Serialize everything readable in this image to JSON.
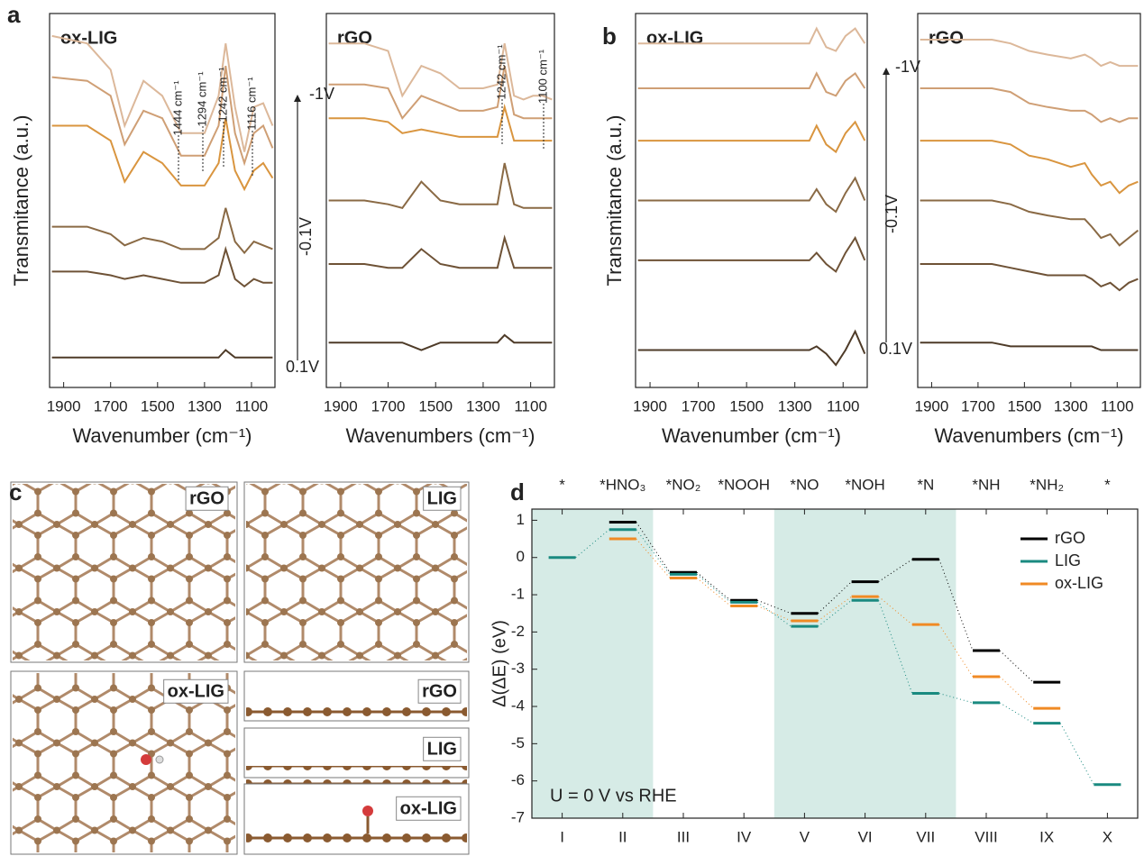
{
  "panel_letters": [
    "a",
    "b",
    "c",
    "d"
  ],
  "potential_labels": [
    "-1V",
    "-0.1V",
    "0.1V"
  ],
  "structure_labels": [
    "rGO",
    "LIG",
    "ox-LIG",
    "rGO",
    "LIG",
    "ox-LIG"
  ],
  "chart_data": [
    {
      "type": "line",
      "title": "ox-LIG",
      "title_color": "#f08a24",
      "y_label": "Transmitance (a.u.)",
      "x_label": "Wavenumber (cm⁻¹)",
      "xlim": [
        1960,
        1000
      ],
      "xticks": [
        1900,
        1700,
        1500,
        1300,
        1100
      ],
      "ylim": [
        0,
        100
      ],
      "annotations": [
        "1444 cm⁻¹",
        "1294 cm⁻¹",
        "1242 cm⁻¹",
        "1116 cm⁻¹"
      ],
      "x": [
        1950,
        1800,
        1700,
        1640,
        1560,
        1480,
        1400,
        1300,
        1240,
        1210,
        1170,
        1130,
        1090,
        1050,
        1010
      ],
      "series": [
        {
          "color": "#dcb89a",
          "values": [
            94,
            92,
            85,
            70,
            82,
            78,
            68,
            68,
            78,
            92,
            75,
            63,
            75,
            76,
            70
          ]
        },
        {
          "color": "#cf9f75",
          "values": [
            83,
            82,
            78,
            65,
            74,
            72,
            62,
            62,
            70,
            86,
            68,
            60,
            68,
            70,
            64
          ]
        },
        {
          "color": "#d9953f",
          "values": [
            70,
            70,
            66,
            55,
            63,
            60,
            54,
            54,
            60,
            72,
            58,
            53,
            58,
            60,
            56
          ]
        },
        {
          "color": "#8a6a45",
          "values": [
            43,
            43,
            41,
            38,
            40,
            39,
            37,
            37,
            40,
            48,
            39,
            36,
            39,
            38,
            37
          ]
        },
        {
          "color": "#6e5236",
          "values": [
            31,
            31,
            30,
            29,
            30,
            29,
            28,
            28,
            30,
            37,
            29,
            27,
            29,
            28,
            28
          ]
        },
        {
          "color": "#4e3b28",
          "values": [
            8,
            8,
            8,
            8,
            8,
            8,
            8,
            8,
            8,
            10,
            8,
            8,
            8,
            8,
            8
          ]
        }
      ]
    },
    {
      "type": "line",
      "title": "rGO",
      "title_color": "#8c8c8c",
      "x_label": "Wavenumbers (cm⁻¹)",
      "xlim": [
        1960,
        1000
      ],
      "xticks": [
        1900,
        1700,
        1500,
        1300,
        1100
      ],
      "ylim": [
        0,
        100
      ],
      "annotations": [
        "1242 cm⁻¹",
        "1100 cm⁻¹"
      ],
      "x": [
        1950,
        1800,
        1700,
        1640,
        1560,
        1480,
        1400,
        1300,
        1240,
        1210,
        1170,
        1130,
        1090,
        1050,
        1010
      ],
      "series": [
        {
          "color": "#dcb89a",
          "values": [
            92,
            92,
            90,
            78,
            86,
            84,
            80,
            80,
            81,
            92,
            78,
            77,
            78,
            78,
            77
          ]
        },
        {
          "color": "#cf9f75",
          "values": [
            81,
            81,
            80,
            72,
            78,
            76,
            74,
            74,
            75,
            86,
            73,
            72,
            72,
            72,
            72
          ]
        },
        {
          "color": "#d9953f",
          "values": [
            72,
            72,
            71,
            68,
            69,
            68,
            67,
            67,
            67,
            75,
            66,
            66,
            66,
            66,
            66
          ]
        },
        {
          "color": "#8a6a45",
          "values": [
            50,
            50,
            49,
            48,
            55,
            50,
            49,
            49,
            49,
            60,
            49,
            48,
            48,
            48,
            48
          ]
        },
        {
          "color": "#6e5236",
          "values": [
            33,
            33,
            32,
            32,
            37,
            33,
            32,
            32,
            32,
            40,
            32,
            32,
            32,
            32,
            32
          ]
        },
        {
          "color": "#4e3b28",
          "values": [
            12,
            12,
            12,
            12,
            10,
            12,
            12,
            12,
            12,
            14,
            12,
            12,
            12,
            12,
            12
          ]
        }
      ]
    },
    {
      "type": "line",
      "title": "ox-LIG",
      "title_color": "#f08a24",
      "y_label": "Transmitance (a.u.)",
      "x_label": "Wavenumber (cm⁻¹)",
      "xlim": [
        1960,
        1000
      ],
      "xticks": [
        1900,
        1700,
        1500,
        1300,
        1100
      ],
      "ylim": [
        0,
        100
      ],
      "x": [
        1950,
        1800,
        1700,
        1640,
        1560,
        1480,
        1400,
        1300,
        1240,
        1210,
        1170,
        1130,
        1090,
        1050,
        1010
      ],
      "series": [
        {
          "color": "#dcb89a",
          "values": [
            92,
            92,
            92,
            92,
            92,
            92,
            92,
            92,
            92,
            96,
            91,
            90,
            94,
            96,
            92
          ]
        },
        {
          "color": "#cf9f75",
          "values": [
            80,
            80,
            80,
            80,
            80,
            80,
            80,
            80,
            80,
            84,
            79,
            78,
            82,
            84,
            80
          ]
        },
        {
          "color": "#d9953f",
          "values": [
            66,
            66,
            66,
            66,
            66,
            66,
            66,
            66,
            66,
            70,
            65,
            63,
            68,
            71,
            66
          ]
        },
        {
          "color": "#8a6a45",
          "values": [
            50,
            50,
            50,
            50,
            50,
            50,
            50,
            50,
            50,
            53,
            49,
            47,
            52,
            56,
            50
          ]
        },
        {
          "color": "#6e5236",
          "values": [
            34,
            34,
            34,
            34,
            34,
            34,
            34,
            34,
            34,
            36,
            33,
            31,
            36,
            40,
            34
          ]
        },
        {
          "color": "#4e3b28",
          "values": [
            10,
            10,
            10,
            10,
            10,
            10,
            10,
            10,
            10,
            11,
            9,
            6,
            10,
            15,
            9
          ]
        }
      ]
    },
    {
      "type": "line",
      "title": "rGO",
      "title_color": "#8c8c8c",
      "x_label": "Wavenumbers (cm⁻¹)",
      "xlim": [
        1960,
        1000
      ],
      "xticks": [
        1900,
        1700,
        1500,
        1300,
        1100
      ],
      "ylim": [
        0,
        100
      ],
      "x": [
        1950,
        1800,
        1700,
        1640,
        1560,
        1480,
        1400,
        1300,
        1240,
        1210,
        1170,
        1130,
        1090,
        1050,
        1010
      ],
      "series": [
        {
          "color": "#dcb89a",
          "values": [
            93,
            93,
            93,
            93,
            92,
            90,
            89,
            88,
            89,
            88,
            86,
            87,
            86,
            86,
            86
          ]
        },
        {
          "color": "#cf9f75",
          "values": [
            80,
            80,
            80,
            80,
            79,
            76,
            75,
            74,
            74,
            73,
            71,
            72,
            71,
            72,
            72
          ]
        },
        {
          "color": "#d9953f",
          "values": [
            66,
            66,
            66,
            66,
            65,
            62,
            61,
            59,
            60,
            57,
            54,
            55,
            52,
            54,
            55
          ]
        },
        {
          "color": "#8a6a45",
          "values": [
            50,
            50,
            50,
            50,
            49,
            47,
            46,
            45,
            45,
            43,
            40,
            41,
            38,
            40,
            42
          ]
        },
        {
          "color": "#6e5236",
          "values": [
            33,
            33,
            33,
            33,
            32,
            31,
            30,
            30,
            30,
            29,
            27,
            28,
            26,
            28,
            29
          ]
        },
        {
          "color": "#4e3b28",
          "values": [
            12,
            12,
            12,
            12,
            11,
            11,
            11,
            11,
            11,
            11,
            10,
            10,
            10,
            10,
            10
          ]
        }
      ]
    },
    {
      "type": "levels",
      "y_label": "Δ(ΔE) (eV)",
      "annotation": "U = 0 V vs RHE",
      "categories": [
        "I",
        "II",
        "III",
        "IV",
        "V",
        "VI",
        "VII",
        "VIII",
        "IX",
        "X"
      ],
      "top_categories": [
        "*",
        "*HNO₃",
        "*NO₂",
        "*NOOH",
        "*NO",
        "*NOH",
        "*N",
        "*NH",
        "*NH₂",
        "*"
      ],
      "shaded": [
        [
          "I",
          "II"
        ],
        [
          "V",
          "VII"
        ]
      ],
      "shade_color": "#d6ebe6",
      "ylim": [
        -7,
        1.3
      ],
      "yticks": [
        -7,
        -6,
        -5,
        -4,
        -3,
        -2,
        -1,
        0,
        1
      ],
      "legend": "upper right",
      "series": [
        {
          "name": "rGO",
          "color": "#000000",
          "values": [
            null,
            0.95,
            -0.4,
            -1.15,
            -1.5,
            -0.65,
            -0.05,
            -2.5,
            -3.35,
            null
          ]
        },
        {
          "name": "LIG",
          "color": "#1a8a80",
          "values": [
            0,
            0.75,
            -0.45,
            -1.2,
            -1.85,
            -1.15,
            -3.65,
            -3.9,
            -4.45,
            -6.1
          ]
        },
        {
          "name": "ox-LIG",
          "color": "#f08a24",
          "values": [
            null,
            0.5,
            -0.55,
            -1.3,
            -1.7,
            -1.05,
            -1.8,
            -3.2,
            -4.05,
            null
          ]
        }
      ]
    }
  ]
}
